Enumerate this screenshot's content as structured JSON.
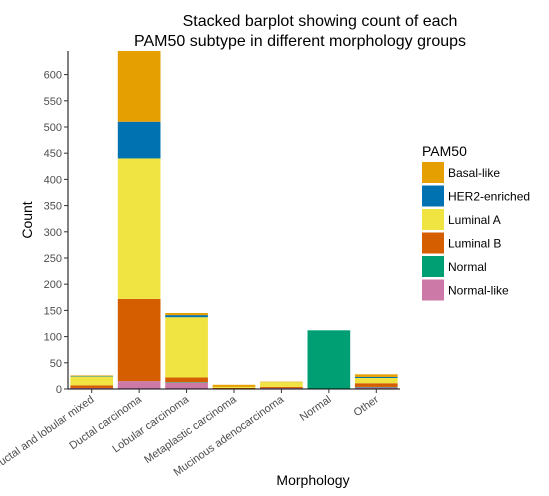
{
  "chart_data": {
    "type": "bar",
    "stacked": true,
    "title": [
      "Stacked barplot showing count of each",
      "PAM50 subtype in different morphology groups"
    ],
    "xlabel": "Morphology",
    "ylabel": "Count",
    "ylim": [
      0,
      645
    ],
    "yticks": [
      0,
      50,
      100,
      150,
      200,
      250,
      300,
      350,
      400,
      450,
      500,
      550,
      600
    ],
    "grid": false,
    "legend_position": "right",
    "categories": [
      "Ductal and lobular mixed",
      "Ductal carcinoma",
      "Lobular carcinoma",
      "Metaplastic carcinoma",
      "Mucinous adenocarcinoma",
      "Normal",
      "Other"
    ],
    "legend_title": "PAM50",
    "series": [
      {
        "name": "Normal-like",
        "color": "#CC79A7",
        "values": [
          2,
          15,
          12,
          1,
          2,
          0,
          3
        ]
      },
      {
        "name": "Normal",
        "color": "#009E73",
        "values": [
          0,
          0,
          1,
          0,
          0,
          112,
          1
        ]
      },
      {
        "name": "Luminal B",
        "color": "#D55E00",
        "values": [
          5,
          157,
          9,
          1,
          2,
          0,
          7
        ]
      },
      {
        "name": "Luminal A",
        "color": "#F0E442",
        "values": [
          17,
          268,
          115,
          2,
          9,
          0,
          10
        ]
      },
      {
        "name": "HER2-enriched",
        "color": "#0072B2",
        "values": [
          1,
          70,
          4,
          0,
          0,
          0,
          2
        ]
      },
      {
        "name": "Basal-like",
        "color": "#E69F00",
        "values": [
          1,
          135,
          4,
          4,
          1,
          0,
          5
        ]
      }
    ],
    "legend_order": [
      "Basal-like",
      "HER2-enriched",
      "Luminal A",
      "Luminal B",
      "Normal",
      "Normal-like"
    ]
  }
}
